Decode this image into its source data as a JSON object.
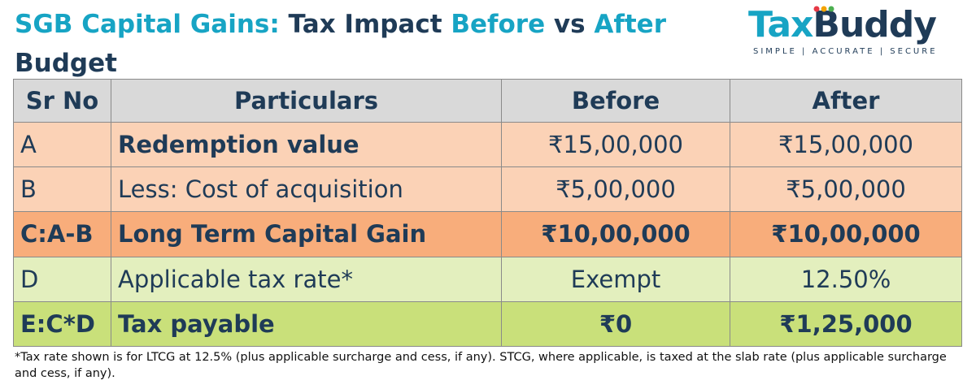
{
  "title": {
    "part1": "SGB Capital Gains:",
    "part2": "Tax Impact",
    "part3": "Before",
    "part4": "vs",
    "part5": "After",
    "part6": "Budget"
  },
  "logo": {
    "word_tax": "Tax",
    "word_buddy": "Buddy",
    "tagline": "SIMPLE | ACCURATE | SECURE",
    "dot_colors": [
      "#e63946",
      "#f4a300",
      "#4caf50"
    ]
  },
  "table": {
    "headers": [
      "Sr No",
      "Particulars",
      "Before",
      "After"
    ],
    "rows": [
      {
        "sr": "A",
        "particular": "Redemption value",
        "before": "₹15,00,000",
        "after": "₹15,00,000"
      },
      {
        "sr": "B",
        "particular": "Less: Cost of acquisition",
        "before": "₹5,00,000",
        "after": "₹5,00,000"
      },
      {
        "sr": "C:A-B",
        "particular": "Long Term Capital Gain",
        "before": "₹10,00,000",
        "after": "₹10,00,000"
      },
      {
        "sr": "D",
        "particular": "Applicable tax rate*",
        "before": "Exempt",
        "after": "12.50%"
      },
      {
        "sr": "E:C*D",
        "particular": "Tax payable",
        "before": "₹0",
        "after": "₹1,25,000"
      }
    ]
  },
  "colors": {
    "header_bg": "#d9d9d9",
    "peach": "#fbd2b6",
    "orange": "#f8ad7b",
    "light_green": "#e3efbe",
    "green": "#c9e07a",
    "accent_teal": "#17a4c4",
    "navy": "#1f3b57"
  },
  "footnote": "*Tax rate shown is for LTCG at 12.5% (plus applicable surcharge and cess, if any). STCG, where applicable, is taxed at the slab rate (plus applicable surcharge and cess, if any)."
}
